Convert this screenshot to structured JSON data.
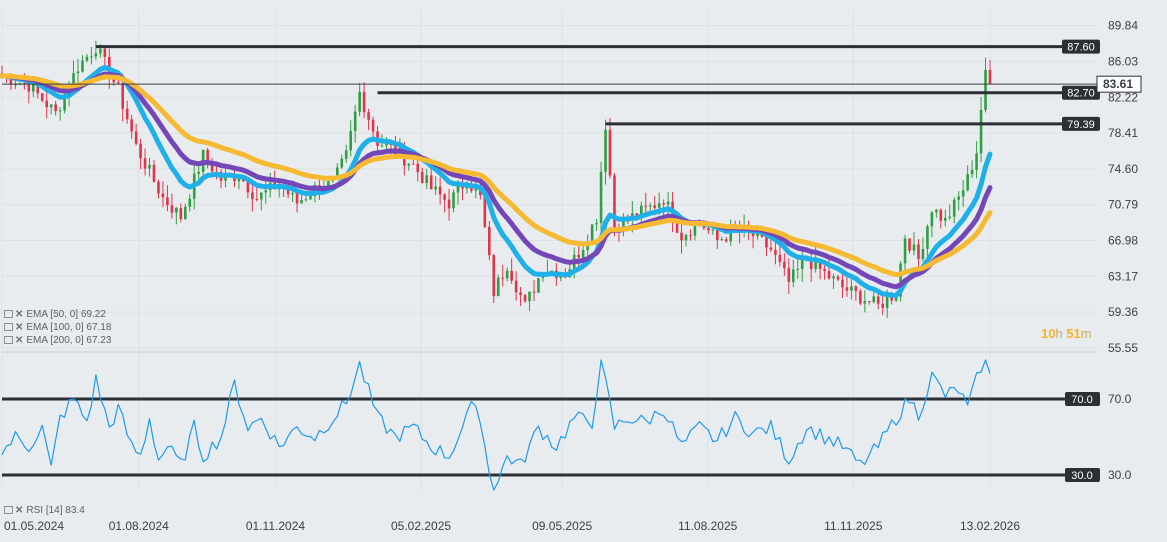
{
  "chart_data": [
    {
      "type": "candlestick",
      "ylim": [
        55.55,
        91.5
      ],
      "y_ticks": [
        "89.84",
        "86.03",
        "82.22",
        "78.41",
        "74.60",
        "70.79",
        "66.98",
        "63.17",
        "59.36",
        "55.55"
      ],
      "x_tick_labels": [
        "01.05.2024",
        "01.08.2024",
        "01.11.2024",
        "05.02.2025",
        "09.05.2025",
        "11.08.2025",
        "11.11.2025",
        "13.02.2026"
      ],
      "price_anchors": [
        [
          0,
          84.5
        ],
        [
          6,
          83.5
        ],
        [
          12,
          80.5
        ],
        [
          17,
          85.5
        ],
        [
          21,
          87.6
        ],
        [
          26,
          83.0
        ],
        [
          30,
          77.0
        ],
        [
          36,
          71.5
        ],
        [
          40,
          69.5
        ],
        [
          45,
          76.0
        ],
        [
          49,
          73.5
        ],
        [
          53,
          74.0
        ],
        [
          57,
          71.5
        ],
        [
          62,
          73.0
        ],
        [
          66,
          71.0
        ],
        [
          70,
          72.5
        ],
        [
          74,
          73.0
        ],
        [
          77,
          76.0
        ],
        [
          80,
          82.7
        ],
        [
          84,
          77.5
        ],
        [
          88,
          76.5
        ],
        [
          92,
          75.0
        ],
        [
          96,
          72.5
        ],
        [
          100,
          71.0
        ],
        [
          104,
          73.5
        ],
        [
          107,
          71.5
        ],
        [
          110,
          61.5
        ],
        [
          113,
          64.5
        ],
        [
          117,
          60.0
        ],
        [
          121,
          64.0
        ],
        [
          126,
          63.5
        ],
        [
          130,
          66.5
        ],
        [
          133,
          69.5
        ],
        [
          135,
          79.39
        ],
        [
          137,
          68.5
        ],
        [
          141,
          69.5
        ],
        [
          145,
          70.5
        ],
        [
          148,
          71.5
        ],
        [
          152,
          67.5
        ],
        [
          156,
          69.0
        ],
        [
          160,
          67.0
        ],
        [
          164,
          68.0
        ],
        [
          168,
          67.5
        ],
        [
          172,
          66.0
        ],
        [
          176,
          62.5
        ],
        [
          180,
          65.0
        ],
        [
          184,
          63.5
        ],
        [
          188,
          62.0
        ],
        [
          192,
          61.0
        ],
        [
          196,
          60.0
        ],
        [
          200,
          61.5
        ],
        [
          202,
          67.5
        ],
        [
          205,
          65.0
        ],
        [
          208,
          70.5
        ],
        [
          211,
          69.0
        ],
        [
          214,
          71.5
        ],
        [
          216,
          73.5
        ],
        [
          218,
          76.5
        ],
        [
          219,
          81.0
        ],
        [
          220,
          84.5
        ],
        [
          221,
          83.61
        ]
      ],
      "series": [
        {
          "name": "EMA [50, 0]",
          "value": "69.22",
          "color": "#1fb0ea"
        },
        {
          "name": "EMA [100, 0]",
          "value": "67.18",
          "color": "#7347b8"
        },
        {
          "name": "EMA [200, 0]",
          "value": "67.23",
          "color": "#f5b932"
        }
      ],
      "levels": [
        {
          "value": 87.6,
          "label": "87.60",
          "start_bar": 21
        },
        {
          "value": 82.7,
          "label": "82.70",
          "start_bar": 84
        },
        {
          "value": 79.39,
          "label": "79.39",
          "start_bar": 135
        }
      ],
      "current_price": {
        "value": 83.61,
        "label": "83.61"
      },
      "timer": {
        "hours": "10",
        "h": "h",
        "minutes": "51",
        "m": "m"
      }
    },
    {
      "type": "line",
      "name": "RSI [14]",
      "last_value": "83.4",
      "ylim": [
        0,
        100
      ],
      "rsi_anchors": [
        [
          0,
          42
        ],
        [
          3,
          50
        ],
        [
          6,
          45
        ],
        [
          9,
          55
        ],
        [
          11,
          33
        ],
        [
          13,
          60
        ],
        [
          16,
          70
        ],
        [
          19,
          58
        ],
        [
          21,
          80
        ],
        [
          24,
          55
        ],
        [
          26,
          65
        ],
        [
          29,
          45
        ],
        [
          31,
          40
        ],
        [
          33,
          60
        ],
        [
          35,
          38
        ],
        [
          37,
          45
        ],
        [
          40,
          35
        ],
        [
          43,
          55
        ],
        [
          45,
          40
        ],
        [
          49,
          50
        ],
        [
          52,
          78
        ],
        [
          55,
          55
        ],
        [
          58,
          60
        ],
        [
          62,
          45
        ],
        [
          66,
          55
        ],
        [
          70,
          50
        ],
        [
          74,
          60
        ],
        [
          77,
          68
        ],
        [
          80,
          88
        ],
        [
          84,
          60
        ],
        [
          88,
          50
        ],
        [
          92,
          55
        ],
        [
          96,
          45
        ],
        [
          100,
          40
        ],
        [
          103,
          55
        ],
        [
          106,
          70
        ],
        [
          108,
          45
        ],
        [
          110,
          20
        ],
        [
          113,
          40
        ],
        [
          116,
          35
        ],
        [
          120,
          55
        ],
        [
          124,
          45
        ],
        [
          128,
          60
        ],
        [
          132,
          58
        ],
        [
          134,
          90
        ],
        [
          137,
          55
        ],
        [
          140,
          60
        ],
        [
          144,
          58
        ],
        [
          148,
          65
        ],
        [
          152,
          45
        ],
        [
          156,
          55
        ],
        [
          160,
          48
        ],
        [
          164,
          60
        ],
        [
          168,
          52
        ],
        [
          172,
          55
        ],
        [
          176,
          38
        ],
        [
          180,
          55
        ],
        [
          184,
          50
        ],
        [
          188,
          45
        ],
        [
          192,
          35
        ],
        [
          196,
          45
        ],
        [
          200,
          60
        ],
        [
          203,
          70
        ],
        [
          205,
          62
        ],
        [
          208,
          82
        ],
        [
          211,
          72
        ],
        [
          214,
          75
        ],
        [
          216,
          65
        ],
        [
          218,
          80
        ],
        [
          220,
          95
        ],
        [
          221,
          83.4
        ]
      ],
      "levels": [
        {
          "value": 70,
          "label": "70.0"
        },
        {
          "value": 30,
          "label": "30.0"
        }
      ]
    }
  ],
  "legend": {
    "ema50": "EMA [50, 0] 69.22",
    "ema100": "EMA [100, 0] 67.18",
    "ema200": "EMA [200, 0] 67.23",
    "rsi": "RSI [14] 83.4",
    "close_symbol": "✕"
  },
  "colors": {
    "background": "#e9ecef",
    "grid": "#dde1e5",
    "up": "#2ea043",
    "down": "#e0344b",
    "level_line": "#2b3036",
    "rsi_line": "#1e9be9",
    "ema50": "#1fb0ea",
    "ema100": "#7347b8",
    "ema200": "#f5b932"
  }
}
